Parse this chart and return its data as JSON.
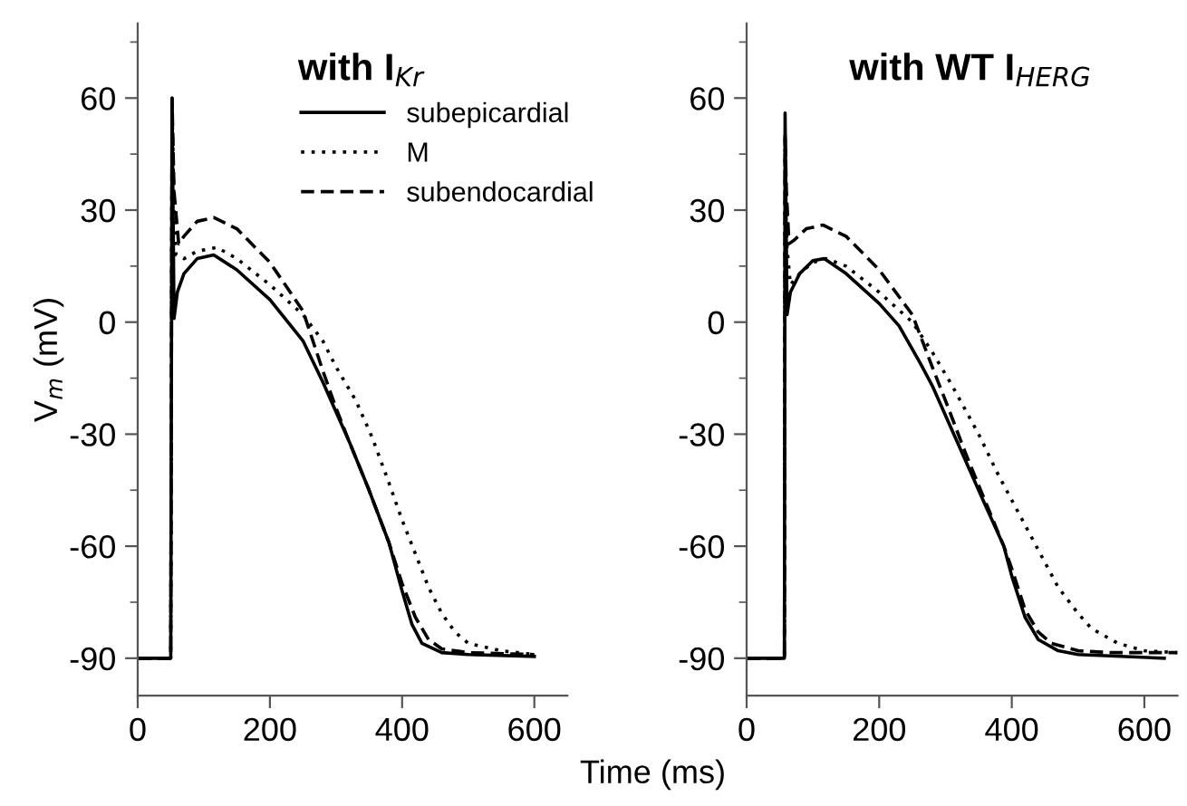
{
  "chart_data": [
    {
      "type": "line",
      "title": "with I$_{Kr}$",
      "ylabel": "V$_{m}$ (mV)",
      "xlabel": "Time (ms)",
      "xlim": [
        0,
        650
      ],
      "xticks": [
        0,
        200,
        400,
        600
      ],
      "ylim": [
        -100,
        80
      ],
      "yticks": [
        -90,
        {
          "value": -75,
          "label": null
        },
        -60,
        {
          "value": -45,
          "label": null
        },
        -30,
        {
          "value": -15,
          "label": null
        },
        0,
        {
          "value": 15,
          "label": null
        },
        30,
        {
          "value": 45,
          "label": null
        },
        60,
        {
          "value": 75,
          "label": null
        }
      ],
      "legend": "top right",
      "grid": false,
      "series": [
        {
          "name": "subepicardial",
          "color": "#000000",
          "line_style": "solid",
          "x": [
            0,
            50,
            52,
            55,
            60,
            70,
            90,
            115,
            150,
            200,
            250,
            280,
            300,
            320,
            350,
            380,
            400,
            415,
            430,
            460,
            500,
            600
          ],
          "values": [
            -90,
            -90,
            60,
            1,
            8,
            13,
            17,
            18,
            14,
            6,
            -5,
            -16,
            -24,
            -32,
            -45,
            -59,
            -72,
            -81,
            -86,
            -88.5,
            -89,
            -89.5
          ]
        },
        {
          "name": "M",
          "color": "#000000",
          "line_style": "dotted",
          "x": [
            0,
            50,
            52,
            55,
            58,
            70,
            90,
            120,
            150,
            200,
            250,
            280,
            300,
            330,
            355,
            380,
            400,
            420,
            440,
            460,
            480,
            500,
            550,
            600
          ],
          "values": [
            -90,
            -90,
            58,
            30,
            18,
            17,
            19,
            20,
            17,
            10,
            2,
            -5,
            -12,
            -21,
            -31,
            -43,
            -53,
            -62,
            -71,
            -78,
            -83,
            -86,
            -88,
            -89
          ]
        },
        {
          "name": "subendocardial",
          "color": "#000000",
          "line_style": "dashed",
          "x": [
            0,
            50,
            52,
            55,
            62,
            70,
            90,
            115,
            150,
            200,
            250,
            280,
            300,
            320,
            350,
            380,
            400,
            420,
            440,
            460,
            500,
            600
          ],
          "values": [
            -90,
            -90,
            60,
            35,
            21,
            23,
            27,
            28,
            25,
            16,
            3,
            -13,
            -23,
            -32,
            -45,
            -59,
            -70,
            -79,
            -85,
            -87.5,
            -88.5,
            -89
          ]
        }
      ]
    },
    {
      "type": "line",
      "title": "with WT I$_{HERG}$",
      "xlim": [
        0,
        650
      ],
      "xticks": [
        0,
        200,
        400,
        600
      ],
      "ylim": [
        -100,
        80
      ],
      "yticks": [
        -90,
        {
          "value": -75,
          "label": null
        },
        -60,
        {
          "value": -45,
          "label": null
        },
        -30,
        {
          "value": -15,
          "label": null
        },
        0,
        {
          "value": 15,
          "label": null
        },
        30,
        {
          "value": 45,
          "label": null
        },
        60,
        {
          "value": 75,
          "label": null
        }
      ],
      "grid": false,
      "series": [
        {
          "color": "#000000",
          "line_style": "solid",
          "x": [
            0,
            57,
            58,
            61,
            66,
            80,
            100,
            117,
            150,
            200,
            230,
            262,
            280,
            300,
            330,
            360,
            388,
            400,
            420,
            440,
            470,
            500,
            630
          ],
          "values": [
            -90,
            -90,
            56,
            2,
            8,
            13,
            16.5,
            17,
            13,
            5,
            -1,
            -11,
            -17,
            -25,
            -37,
            -49,
            -60,
            -68,
            -79,
            -85,
            -88,
            -89,
            -90
          ]
        },
        {
          "color": "#000000",
          "line_style": "dotted",
          "x": [
            0,
            57,
            58,
            61,
            66,
            80,
            100,
            120,
            150,
            200,
            250,
            280,
            310,
            350,
            380,
            410,
            440,
            470,
            500,
            520,
            560,
            600,
            650
          ],
          "values": [
            -90,
            -90,
            50,
            20,
            10,
            13,
            16,
            17,
            15,
            8,
            0,
            -8,
            -17,
            -30,
            -41,
            -51,
            -61,
            -71,
            -78,
            -82,
            -86,
            -88,
            -88.5
          ]
        },
        {
          "color": "#000000",
          "line_style": "dashed",
          "x": [
            0,
            57,
            58,
            60,
            64,
            72,
            90,
            115,
            150,
            200,
            250,
            280,
            300,
            330,
            360,
            388,
            400,
            420,
            440,
            460,
            500,
            550,
            650
          ],
          "values": [
            -90,
            -90,
            50,
            35,
            21,
            22,
            25,
            26,
            23,
            14,
            2,
            -12,
            -21,
            -35,
            -48,
            -60,
            -66,
            -77,
            -83,
            -86,
            -88,
            -88.5,
            -88.5
          ]
        }
      ]
    }
  ]
}
